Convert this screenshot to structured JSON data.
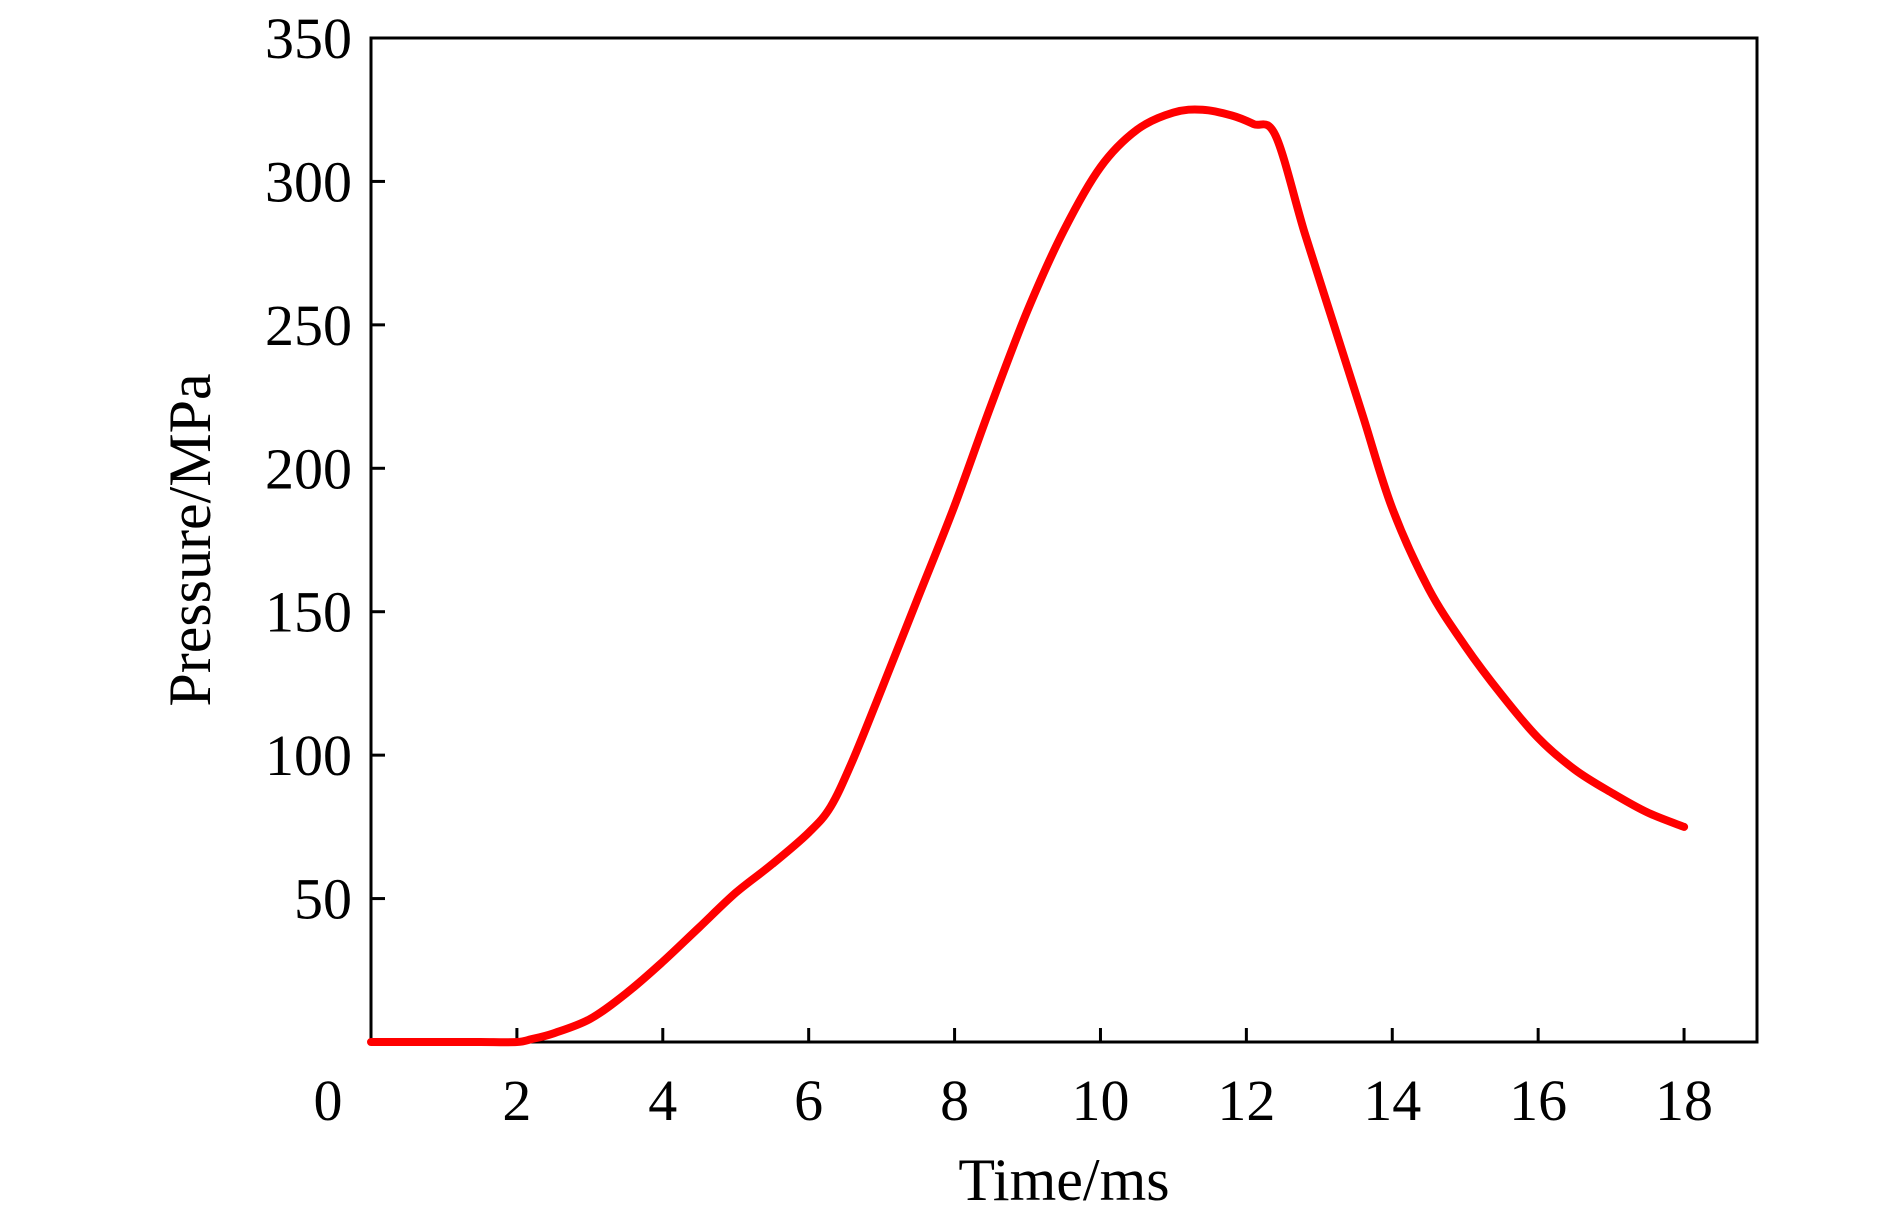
{
  "chart_data": {
    "type": "line",
    "title": "",
    "xlabel": "Time/ms",
    "ylabel": "Pressure/MPa",
    "xlim": [
      0,
      19
    ],
    "ylim": [
      0,
      350
    ],
    "x_ticks": [
      0,
      2,
      4,
      6,
      8,
      10,
      12,
      14,
      16,
      18
    ],
    "y_ticks": [
      50,
      100,
      150,
      200,
      250,
      300,
      350
    ],
    "origin_label": "0",
    "grid": false,
    "legend": "none",
    "series": [
      {
        "color": "#ff0000",
        "x": [
          0,
          0.5,
          1,
          1.5,
          2,
          2.2,
          2.5,
          3,
          3.5,
          4,
          4.5,
          5,
          5.5,
          6,
          6.3,
          6.6,
          7,
          7.5,
          8,
          8.5,
          9,
          9.5,
          10,
          10.5,
          11,
          11.4,
          11.8,
          12.1,
          12.4,
          12.8,
          13.2,
          13.6,
          14,
          14.5,
          15,
          15.5,
          16,
          16.5,
          17,
          17.5,
          18
        ],
        "y": [
          0,
          0,
          0,
          0,
          0,
          1,
          3,
          8,
          17,
          28,
          40,
          52,
          62,
          73,
          82,
          98,
          123,
          155,
          187,
          222,
          255,
          283,
          305,
          318,
          324,
          325,
          323,
          320,
          316,
          282,
          250,
          218,
          186,
          158,
          138,
          121,
          106,
          95,
          87,
          80,
          75
        ]
      }
    ]
  }
}
